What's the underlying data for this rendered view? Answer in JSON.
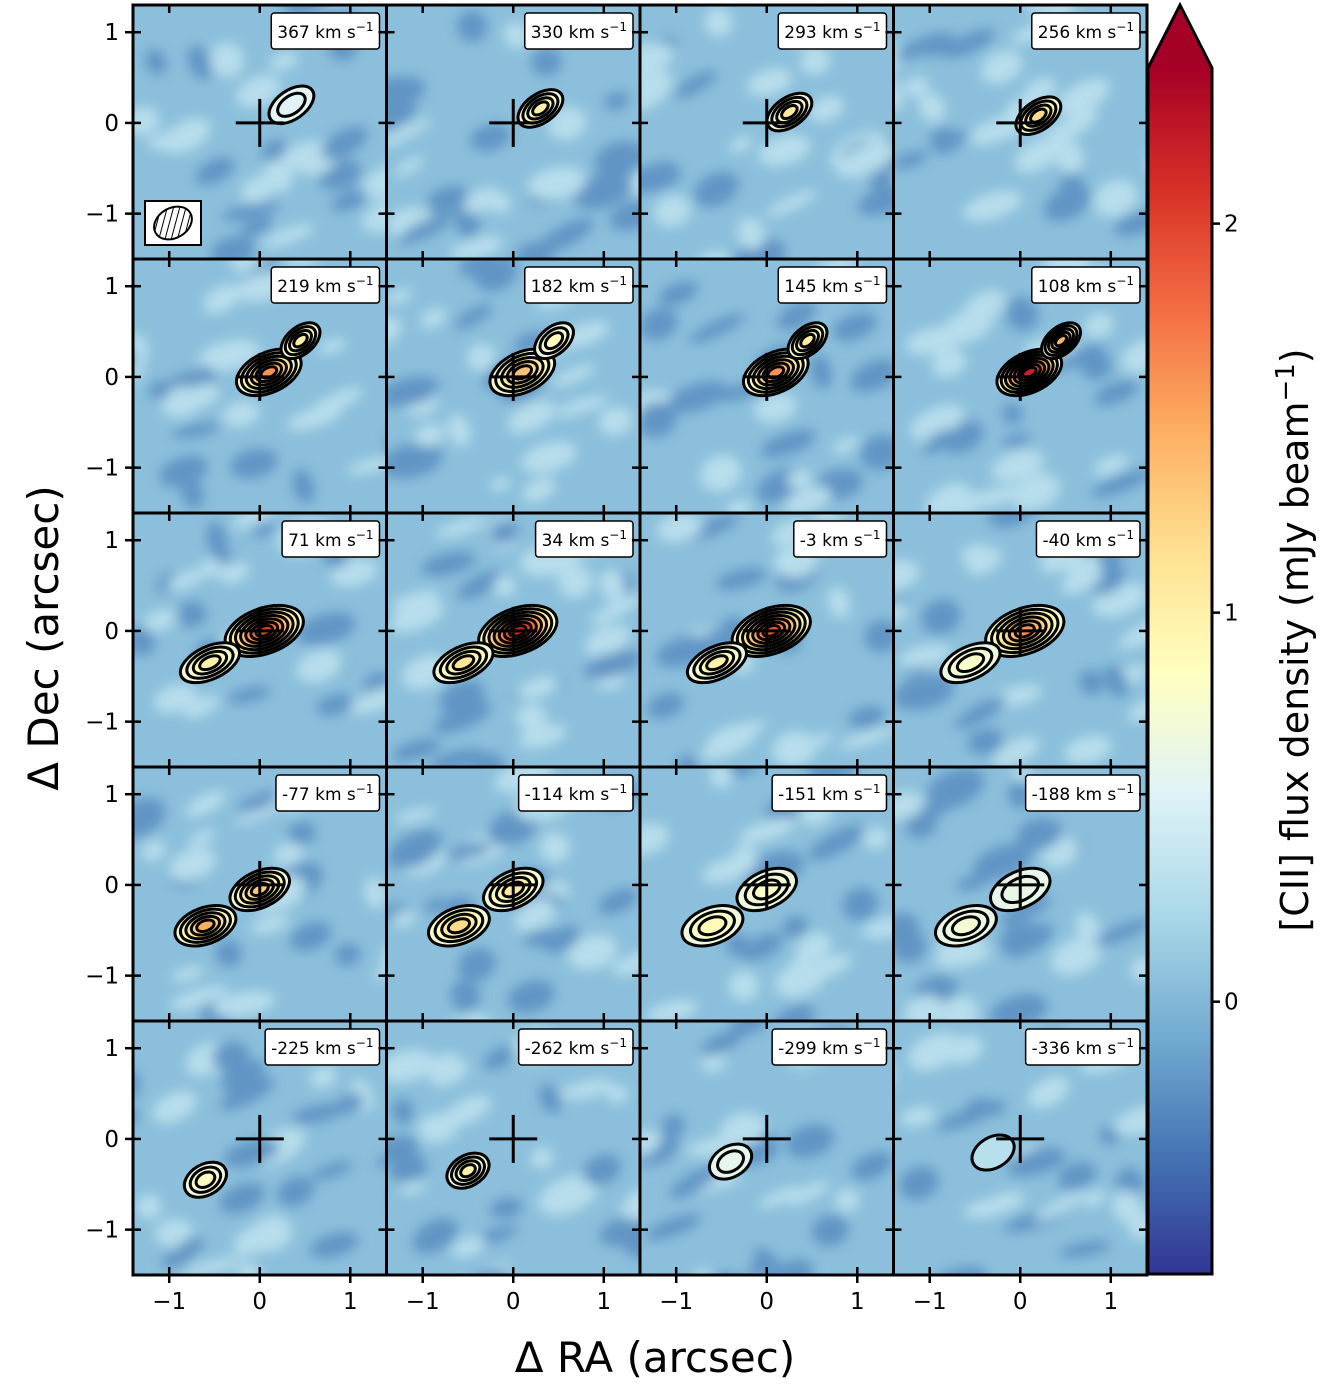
{
  "chart_data": {
    "type": "heatmap",
    "title": "",
    "xlabel": "Δ RA (arcsec)",
    "ylabel": "Δ Dec (arcsec)",
    "xlim": [
      -1.4,
      1.4
    ],
    "ylim": [
      -1.5,
      1.3
    ],
    "xticks": [
      -1,
      0,
      1
    ],
    "yticks": [
      1,
      0,
      -1
    ],
    "xtick_labels": [
      "−1",
      "0",
      "1"
    ],
    "ytick_labels": [
      "1",
      "0",
      "−1"
    ],
    "grid": false,
    "layout": "5 rows × 4 columns of channel maps",
    "velocity_unit": "km s",
    "velocity_unit_exponent": "−1",
    "channels": [
      367,
      330,
      293,
      256,
      219,
      182,
      145,
      108,
      71,
      34,
      -3,
      -40,
      -77,
      -114,
      -151,
      -188,
      -225,
      -262,
      -299,
      -336
    ],
    "colorbar": {
      "label": "[CII] flux density (mJy beam",
      "label_exponent": "−1",
      "label_close": ")",
      "range": [
        -0.7,
        2.4
      ],
      "ticks": [
        0,
        1,
        2
      ],
      "tick_labels": [
        "0",
        "1",
        "2"
      ],
      "extend": "max",
      "colormap": "RdYlBu_r",
      "colors": [
        "#313695",
        "#4575b4",
        "#74add1",
        "#abd9e9",
        "#e0f3f8",
        "#ffffbf",
        "#fee090",
        "#fdae61",
        "#f46d43",
        "#d73027",
        "#a50026"
      ]
    },
    "source_center_marker": {
      "x": 0,
      "y": 0,
      "shape": "cross"
    },
    "beam_marker": {
      "shape": "hatched ellipse",
      "panel": 367,
      "corner": "bottom-left"
    },
    "peak_flux_by_channel": [
      0.55,
      1.0,
      1.05,
      1.2,
      1.6,
      1.35,
      1.6,
      2.2,
      2.0,
      2.2,
      1.9,
      1.6,
      1.45,
      1.2,
      0.9,
      0.7,
      0.85,
      0.95,
      0.6,
      0.2
    ]
  }
}
